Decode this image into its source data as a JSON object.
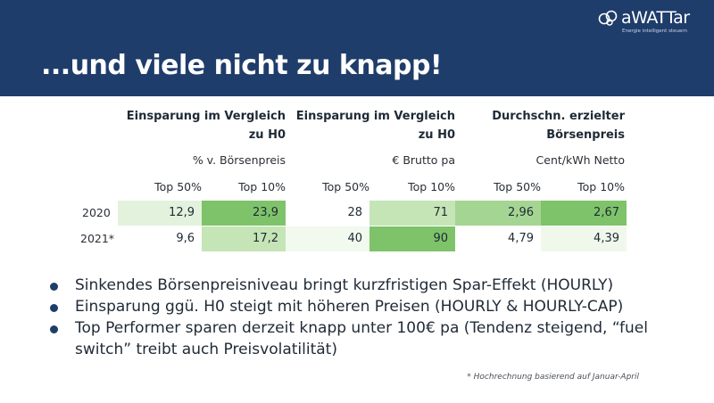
{
  "header": {
    "title": "...und viele nicht zu knapp!",
    "logo_text": "aWATTar",
    "logo_subtitle": "Energie intelligent steuern"
  },
  "table": {
    "groups": [
      {
        "title_line1": "Einsparung im Vergleich",
        "title_line2": "zu H0",
        "unit": "% v. Börsenpreis"
      },
      {
        "title_line1": "Einsparung im Vergleich",
        "title_line2": "zu H0",
        "unit": "€ Brutto pa"
      },
      {
        "title_line1": "Durchschn. erzielter",
        "title_line2": "Börsenpreis",
        "unit": "Cent/kWh Netto"
      }
    ],
    "columns": [
      "Top 50%",
      "Top 10%",
      "Top 50%",
      "Top 10%",
      "Top 50%",
      "Top 10%"
    ],
    "rows": [
      {
        "label": "2020",
        "values": [
          "12,9",
          "23,9",
          "28",
          "71",
          "2,96",
          "2,67"
        ],
        "colors": [
          "#e3f2dc",
          "#7ec36a",
          "#ffffff",
          "#c5e5b7",
          "#a5d592",
          "#7ec36a"
        ]
      },
      {
        "label": "2021*",
        "values": [
          "9,6",
          "17,2",
          "40",
          "90",
          "4,79",
          "4,39"
        ],
        "colors": [
          "#ffffff",
          "#c5e5b7",
          "#f2f9ee",
          "#7ec36a",
          "#ffffff",
          "#f0f8ec"
        ]
      }
    ]
  },
  "bullets": [
    "Sinkendes Börsenpreisniveau bringt kurzfristigen Spar-Effekt (HOURLY)",
    "Einsparung ggü. H0 steigt mit höheren Preisen (HOURLY & HOURLY-CAP)",
    "Top Performer sparen derzeit knapp unter 100€ pa (Tendenz steigend, “fuel switch” treibt auch Preisvolatilität)"
  ],
  "footnote": "* Hochrechnung basierend auf Januar-April",
  "colors": {
    "header_bg": "#1f3d6b",
    "dark_green": "#7ec36a",
    "mid_green": "#a5d592",
    "light_green": "#c5e5b7"
  }
}
